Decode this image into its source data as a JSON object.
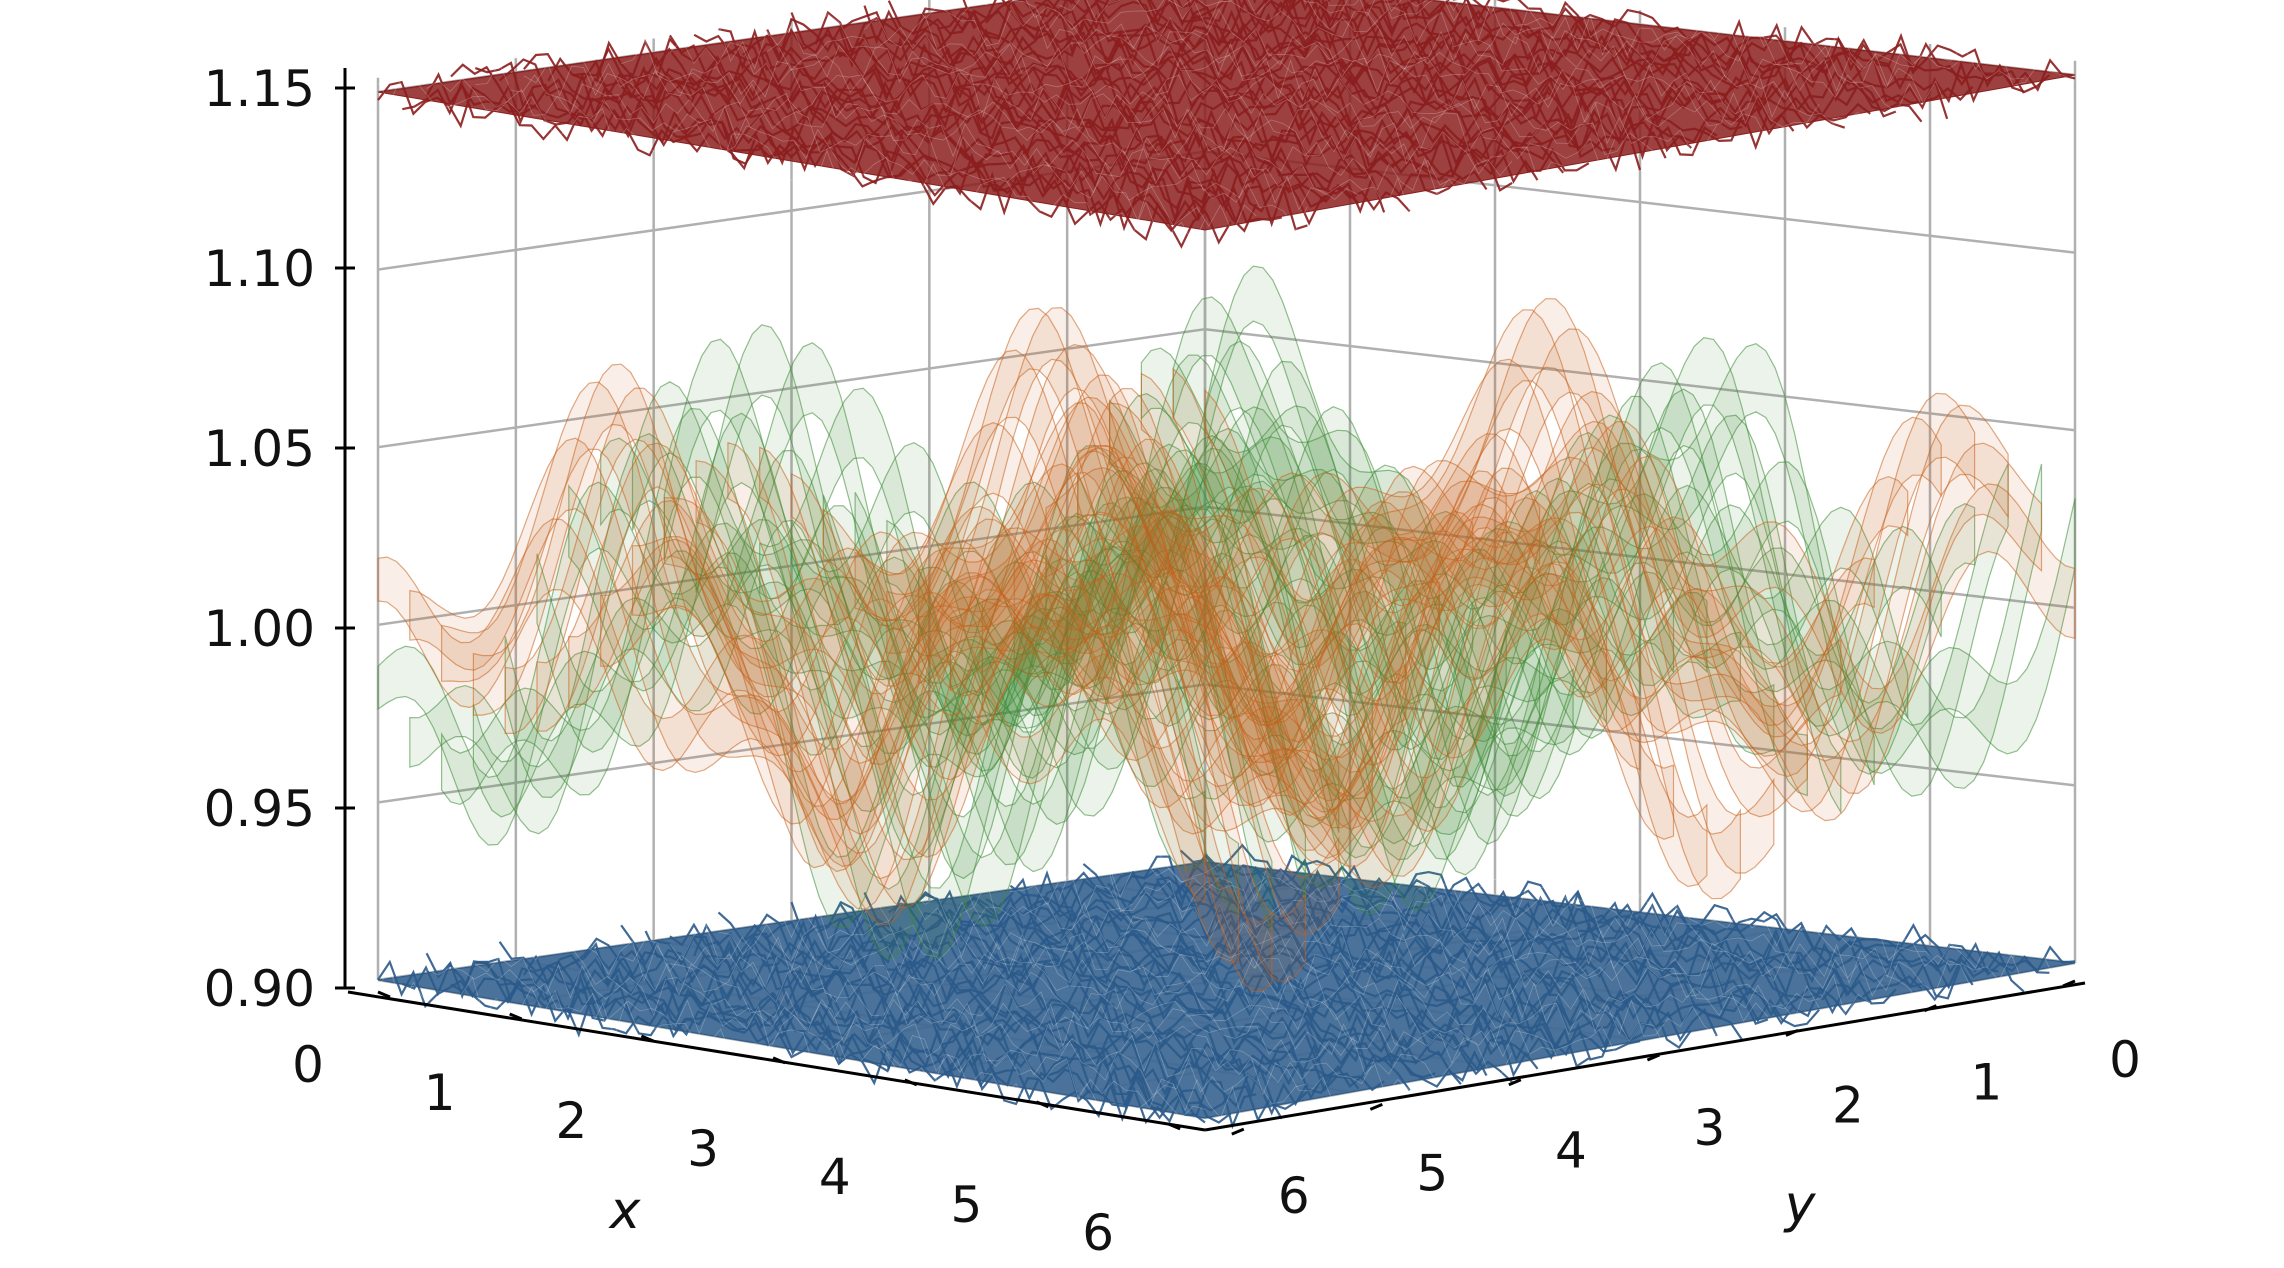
{
  "chart_data": {
    "type": "surface3d",
    "axes": {
      "x": {
        "label": "x",
        "ticks": [
          0,
          1,
          2,
          3,
          4,
          5,
          6
        ],
        "range": [
          0,
          6.28
        ]
      },
      "y": {
        "label": "y",
        "ticks": [
          0,
          1,
          2,
          3,
          4,
          5,
          6
        ],
        "range": [
          0,
          6.28
        ]
      },
      "z": {
        "label": "",
        "ticks": [
          "0.90",
          "0.95",
          "1.00",
          "1.05",
          "1.10",
          "1.15"
        ],
        "range": [
          0.9,
          1.15
        ]
      }
    },
    "grid": true,
    "series": [
      {
        "color": "#2b5a8a",
        "description_level": 0.9,
        "noise": 0.006,
        "kind": "flat-noisy"
      },
      {
        "color": "#8b1e1e",
        "description_level": 1.15,
        "noise": 0.006,
        "kind": "flat-noisy"
      },
      {
        "color": "#3d8a35",
        "description_level": 1.0,
        "amplitude": 0.06,
        "kind": "oscillating-band"
      },
      {
        "color": "#c8631e",
        "description_level": 1.0,
        "amplitude": 0.06,
        "kind": "oscillating-band"
      }
    ]
  }
}
